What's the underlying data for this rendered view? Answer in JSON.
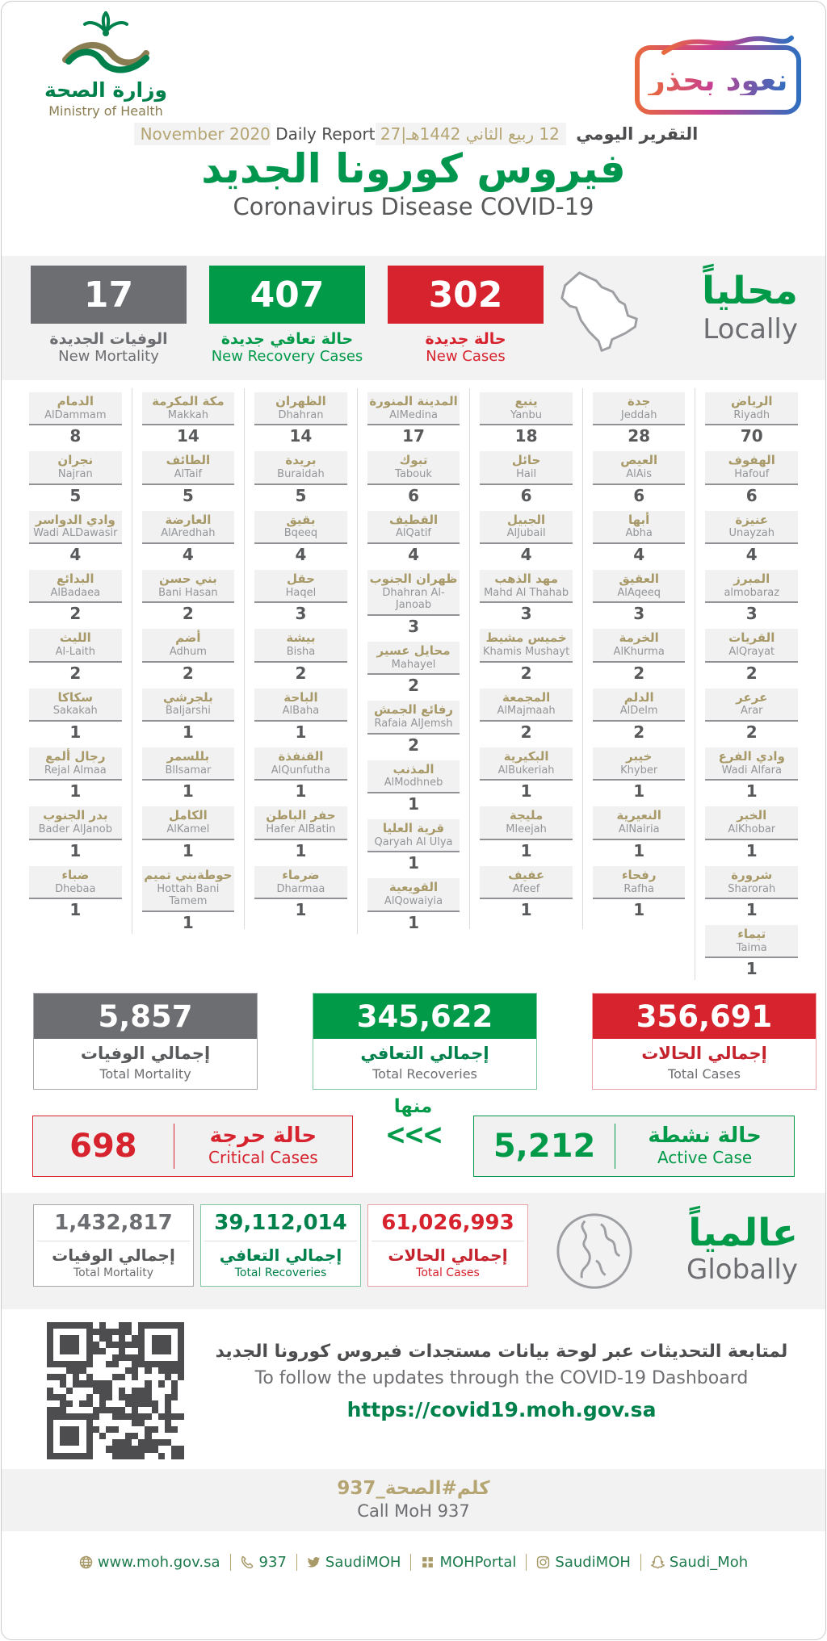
{
  "header": {
    "logo_ar": "وزارة الصحة",
    "logo_en": "Ministry of Health",
    "badge_text": "نعود بحذر",
    "report_label_ar": "التقرير اليومي",
    "report_date": "12 ربيع الثاني 1442هـ|27 November 2020",
    "report_label_en": "Daily Report",
    "title_ar": "فيروس كورونا الجديد",
    "title_en": "Coronavirus Disease COVID-19"
  },
  "colors": {
    "green": "#009A49",
    "red": "#D7232E",
    "gray": "#6D6E71",
    "gold": "#A89968"
  },
  "local": {
    "heading_ar": "محلياً",
    "heading_en": "Locally",
    "stats": [
      {
        "value": "17",
        "label_ar": "الوفيات الجديدة",
        "label_en": "New Mortality",
        "theme": "gray"
      },
      {
        "value": "407",
        "label_ar": "حالة تعافي جديدة",
        "label_en": "New Recovery Cases",
        "theme": "green"
      },
      {
        "value": "302",
        "label_ar": "حالة جديدة",
        "label_en": "New Cases",
        "theme": "red"
      }
    ]
  },
  "cities": {
    "columns": [
      [
        {
          "ar": "الدمام",
          "en": "AlDammam",
          "value": "8"
        },
        {
          "ar": "نجران",
          "en": "Najran",
          "value": "5"
        },
        {
          "ar": "وادي الدواسر",
          "en": "Wadi ALDawasir",
          "value": "4"
        },
        {
          "ar": "البدائع",
          "en": "AlBadaea",
          "value": "2"
        },
        {
          "ar": "الليث",
          "en": "Al-Laith",
          "value": "2"
        },
        {
          "ar": "سكاكا",
          "en": "Sakakah",
          "value": "1"
        },
        {
          "ar": "رجال ألمع",
          "en": "Rejal Almaa",
          "value": "1"
        },
        {
          "ar": "بدر الجنوب",
          "en": "Bader AlJanob",
          "value": "1"
        },
        {
          "ar": "ضباء",
          "en": "Dhebaa",
          "value": "1"
        }
      ],
      [
        {
          "ar": "مكة المكرمة",
          "en": "Makkah",
          "value": "14"
        },
        {
          "ar": "الطائف",
          "en": "AlTaif",
          "value": "5"
        },
        {
          "ar": "العارضة",
          "en": "AlAredhah",
          "value": "4"
        },
        {
          "ar": "بني حسن",
          "en": "Bani Hasan",
          "value": "2"
        },
        {
          "ar": "أضم",
          "en": "Adhum",
          "value": "2"
        },
        {
          "ar": "بلجرشي",
          "en": "Baljarshi",
          "value": "1"
        },
        {
          "ar": "بللسمر",
          "en": "Bllsamar",
          "value": "1"
        },
        {
          "ar": "الكامل",
          "en": "AlKamel",
          "value": "1"
        },
        {
          "ar": "حوطةبني تميم",
          "en": "Hottah Bani Tamem",
          "value": "1"
        }
      ],
      [
        {
          "ar": "الظهران",
          "en": "Dhahran",
          "value": "14"
        },
        {
          "ar": "بريدة",
          "en": "Buraidah",
          "value": "5"
        },
        {
          "ar": "بقيق",
          "en": "Bqeeq",
          "value": "4"
        },
        {
          "ar": "حقل",
          "en": "Haqel",
          "value": "3"
        },
        {
          "ar": "بيشة",
          "en": "Bisha",
          "value": "2"
        },
        {
          "ar": "الباحة",
          "en": "AlBaha",
          "value": "1"
        },
        {
          "ar": "القنفذة",
          "en": "AlQunfutha",
          "value": "1"
        },
        {
          "ar": "حفر الباطن",
          "en": "Hafer AlBatin",
          "value": "1"
        },
        {
          "ar": "ضرماء",
          "en": "Dharmaa",
          "value": "1"
        }
      ],
      [
        {
          "ar": "المدينة المنورة",
          "en": "AlMedina",
          "value": "17"
        },
        {
          "ar": "تبوك",
          "en": "Tabouk",
          "value": "6"
        },
        {
          "ar": "القطيف",
          "en": "AlQatif",
          "value": "4"
        },
        {
          "ar": "ظهران الجنوب",
          "en": "Dhahran Al-Janoab",
          "value": "3"
        },
        {
          "ar": "محايل عسير",
          "en": "Mahayel",
          "value": "2"
        },
        {
          "ar": "رفائع الجمش",
          "en": "Rafaia AlJemsh",
          "value": "2"
        },
        {
          "ar": "المذنب",
          "en": "AlModhneb",
          "value": "1"
        },
        {
          "ar": "قرية العليا",
          "en": "Qaryah Al Ulya",
          "value": "1"
        },
        {
          "ar": "القويعية",
          "en": "AlQowaiyia",
          "value": "1"
        }
      ],
      [
        {
          "ar": "ينبع",
          "en": "Yanbu",
          "value": "18"
        },
        {
          "ar": "حائل",
          "en": "Hail",
          "value": "6"
        },
        {
          "ar": "الجبيل",
          "en": "AlJubail",
          "value": "4"
        },
        {
          "ar": "مهد الذهب",
          "en": "Mahd Al Thahab",
          "value": "3"
        },
        {
          "ar": "خميس مشيط",
          "en": "Khamis Mushayt",
          "value": "2"
        },
        {
          "ar": "المجمعة",
          "en": "AlMajmaah",
          "value": "2"
        },
        {
          "ar": "البكيرية",
          "en": "AlBukeriah",
          "value": "1"
        },
        {
          "ar": "مليجة",
          "en": "Mleejah",
          "value": "1"
        },
        {
          "ar": "عفيف",
          "en": "Afeef",
          "value": "1"
        }
      ],
      [
        {
          "ar": "جدة",
          "en": "Jeddah",
          "value": "28"
        },
        {
          "ar": "العيص",
          "en": "AlAis",
          "value": "6"
        },
        {
          "ar": "أبها",
          "en": "Abha",
          "value": "4"
        },
        {
          "ar": "العقيق",
          "en": "AlAqeeq",
          "value": "3"
        },
        {
          "ar": "الخرمة",
          "en": "AlKhurma",
          "value": "2"
        },
        {
          "ar": "الدلم",
          "en": "AlDelm",
          "value": "2"
        },
        {
          "ar": "خيبر",
          "en": "Khyber",
          "value": "1"
        },
        {
          "ar": "النعيرية",
          "en": "AlNairia",
          "value": "1"
        },
        {
          "ar": "رفحاء",
          "en": "Rafha",
          "value": "1"
        }
      ],
      [
        {
          "ar": "الرياض",
          "en": "Riyadh",
          "value": "70"
        },
        {
          "ar": "الهفوف",
          "en": "Hafouf",
          "value": "6"
        },
        {
          "ar": "عنيزة",
          "en": "Unayzah",
          "value": "4"
        },
        {
          "ar": "المبرز",
          "en": "almobaraz",
          "value": "3"
        },
        {
          "ar": "القريات",
          "en": "AlQrayat",
          "value": "2"
        },
        {
          "ar": "عرعر",
          "en": "Arar",
          "value": "2"
        },
        {
          "ar": "وادي الفرع",
          "en": "Wadi Alfara",
          "value": "1"
        },
        {
          "ar": "الخبر",
          "en": "AlKhobar",
          "value": "1"
        },
        {
          "ar": "شرورة",
          "en": "Sharorah",
          "value": "1"
        },
        {
          "ar": "تيماء",
          "en": "Taima",
          "value": "1"
        }
      ]
    ]
  },
  "totals": [
    {
      "value": "5,857",
      "label_ar": "إجمالي الوفيات",
      "label_en": "Total Mortality",
      "theme": "gray"
    },
    {
      "value": "345,622",
      "label_ar": "إجمالي التعافي",
      "label_en": "Total Recoveries",
      "theme": "green"
    },
    {
      "value": "356,691",
      "label_ar": "إجمالي الحالات",
      "label_en": "Total Cases",
      "theme": "red"
    }
  ],
  "flow": {
    "of_which": "منها",
    "chevrons": "<<<",
    "critical": {
      "value": "698",
      "label_ar": "حالة حرجة",
      "label_en": "Critical Cases"
    },
    "active": {
      "value": "5,212",
      "label_ar": "حالة نشطة",
      "label_en": "Active Case"
    }
  },
  "global": {
    "heading_ar": "عالمياً",
    "heading_en": "Globally",
    "stats": [
      {
        "value": "1,432,817",
        "label_ar": "إجمالي الوفيات",
        "label_en": "Total Mortality",
        "theme": "gray"
      },
      {
        "value": "39,112,014",
        "label_ar": "إجمالي التعافي",
        "label_en": "Total Recoveries",
        "theme": "green"
      },
      {
        "value": "61,026,993",
        "label_ar": "إجمالي الحالات",
        "label_en": "Total Cases",
        "theme": "red"
      }
    ]
  },
  "dashboard": {
    "text_ar": "لمتابعة التحديثات عبر لوحة بيانات مستجدات فيروس كورونا الجديد",
    "text_en": "To follow the updates through the COVID-19 Dashboard",
    "url": "https://covid19.moh.gov.sa"
  },
  "call": {
    "ar": "كلم#الصحة_937",
    "en": "Call MoH 937"
  },
  "footer": {
    "links": [
      {
        "icon": "globe-icon",
        "text": "www.moh.gov.sa"
      },
      {
        "icon": "phone-icon",
        "text": "937"
      },
      {
        "icon": "twitter-icon",
        "text": "SaudiMOH"
      },
      {
        "icon": "grid-icon",
        "text": "MOHPortal"
      },
      {
        "icon": "instagram-icon",
        "text": "SaudiMOH"
      },
      {
        "icon": "snapchat-icon",
        "text": "Saudi_Moh"
      }
    ]
  }
}
